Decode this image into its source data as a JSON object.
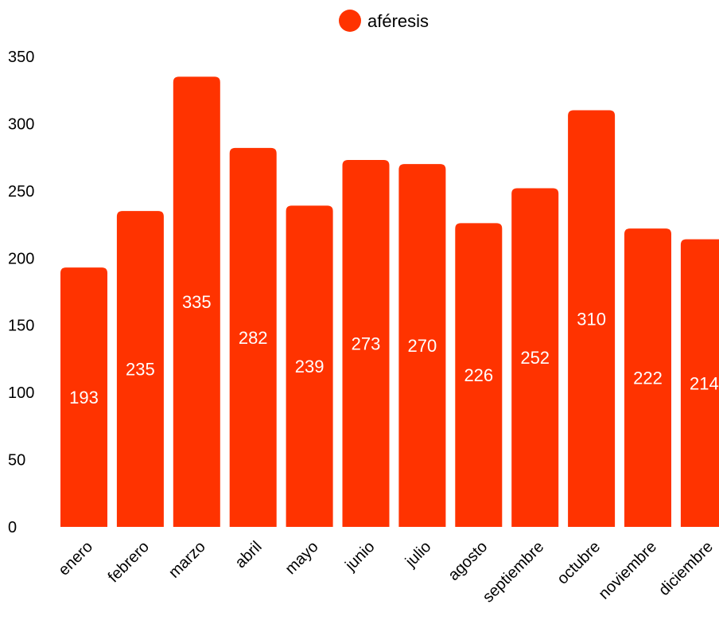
{
  "chart_data": {
    "type": "bar",
    "categories": [
      "enero",
      "febrero",
      "marzo",
      "abril",
      "mayo",
      "junio",
      "julio",
      "agosto",
      "septiembre",
      "octubre",
      "noviembre",
      "diciembre"
    ],
    "series": [
      {
        "name": "aféresis",
        "values": [
          193,
          235,
          335,
          282,
          239,
          273,
          270,
          226,
          252,
          310,
          222,
          214
        ]
      }
    ],
    "ylim": [
      0,
      350
    ],
    "yticks": [
      0,
      50,
      100,
      150,
      200,
      250,
      300,
      350
    ],
    "grid": false,
    "legend_position": "top-center",
    "data_labels": true,
    "colors": {
      "bar": "#ff3300",
      "value_label": "#ffffff",
      "text": "#000000"
    }
  }
}
